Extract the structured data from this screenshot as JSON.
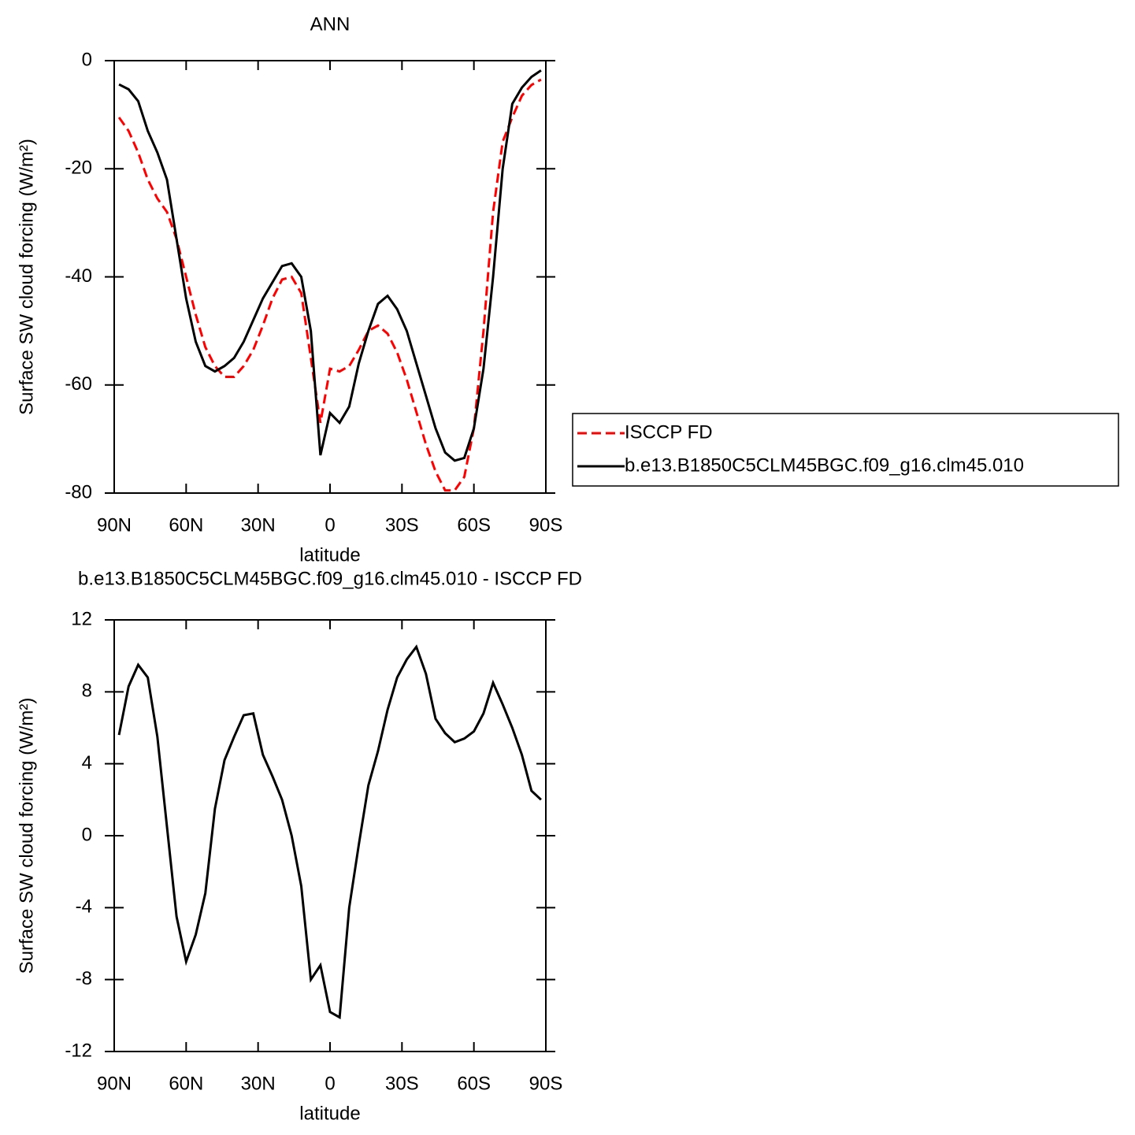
{
  "chart_data": [
    {
      "type": "line",
      "title": "ANN",
      "xlabel": "latitude",
      "ylabel": "Surface SW cloud forcing (W/m²)",
      "x": [
        88,
        84,
        80,
        76,
        72,
        68,
        64,
        60,
        56,
        52,
        48,
        44,
        40,
        36,
        32,
        28,
        24,
        20,
        16,
        12,
        8,
        4,
        0,
        -4,
        -8,
        -12,
        -16,
        -20,
        -24,
        -28,
        -32,
        -36,
        -40,
        -44,
        -48,
        -52,
        -56,
        -60,
        -64,
        -68,
        -72,
        -76,
        -80,
        -84,
        -88
      ],
      "xlim": [
        90,
        -90
      ],
      "xticks": [
        {
          "value": 90,
          "label": "90N"
        },
        {
          "value": 60,
          "label": "60N"
        },
        {
          "value": 30,
          "label": "30N"
        },
        0,
        {
          "value": -30,
          "label": "30S"
        },
        {
          "value": -60,
          "label": "60S"
        },
        {
          "value": -90,
          "label": "90S"
        }
      ],
      "ylim": [
        -80,
        0
      ],
      "yticks": [
        -80,
        -60,
        -40,
        -20,
        0
      ],
      "legend": "right",
      "series": [
        {
          "name": "ISCCP FD",
          "color": "#ff0000",
          "linestyle": "dashed",
          "values": [
            -10.5,
            -13,
            -17,
            -22,
            -25.5,
            -28,
            -33,
            -40,
            -47,
            -53,
            -56.5,
            -58.5,
            -58.5,
            -56.5,
            -53.5,
            -49,
            -44,
            -40.5,
            -40,
            -43,
            -55,
            -67,
            -57,
            -57.5,
            -56.5,
            -53.5,
            -50,
            -49,
            -50.5,
            -54,
            -59,
            -65,
            -71,
            -76,
            -79.5,
            -79.5,
            -77,
            -68,
            -50,
            -28,
            -15,
            -10.5,
            -6.5,
            -4.5,
            -3.5
          ]
        },
        {
          "name": "b.e13.B1850C5CLM45BGC.f09_g16.clm45.010",
          "color": "#000000",
          "linestyle": "solid",
          "values": [
            -4.4,
            -5.3,
            -7.5,
            -13,
            -17,
            -22,
            -33,
            -44,
            -52,
            -56.5,
            -57.5,
            -56.5,
            -55,
            -52,
            -48,
            -44,
            -41,
            -38,
            -37.5,
            -40,
            -50,
            -73,
            -65.2,
            -67,
            -64,
            -56,
            -50,
            -45,
            -43.5,
            -46,
            -50,
            -56,
            -62,
            -68,
            -72.5,
            -74,
            -73.5,
            -68,
            -57,
            -40,
            -20,
            -8,
            -5,
            -3,
            -1.8
          ]
        }
      ]
    },
    {
      "type": "line",
      "title": "b.e13.B1850C5CLM45BGC.f09_g16.clm45.010 - ISCCP FD",
      "xlabel": "latitude",
      "ylabel": "Surface SW cloud forcing (W/m²)",
      "x": [
        88,
        84,
        80,
        76,
        72,
        68,
        64,
        60,
        56,
        52,
        48,
        44,
        40,
        36,
        32,
        28,
        24,
        20,
        16,
        12,
        8,
        4,
        0,
        -4,
        -8,
        -12,
        -16,
        -20,
        -24,
        -28,
        -32,
        -36,
        -40,
        -44,
        -48,
        -52,
        -56,
        -60,
        -64,
        -68,
        -72,
        -76,
        -80,
        -84,
        -88
      ],
      "xlim": [
        90,
        -90
      ],
      "xticks": [
        {
          "value": 90,
          "label": "90N"
        },
        {
          "value": 60,
          "label": "60N"
        },
        {
          "value": 30,
          "label": "30N"
        },
        0,
        {
          "value": -30,
          "label": "30S"
        },
        {
          "value": -60,
          "label": "60S"
        },
        {
          "value": -90,
          "label": "90S"
        }
      ],
      "ylim": [
        -12,
        12
      ],
      "yticks": [
        -12,
        -8,
        -4,
        0,
        4,
        8,
        12
      ],
      "series": [
        {
          "color": "#000000",
          "linestyle": "solid",
          "values": [
            5.6,
            8.3,
            9.5,
            8.8,
            5.5,
            0.5,
            -4.5,
            -7.0,
            -5.5,
            -3.2,
            1.5,
            4.2,
            5.5,
            6.7,
            6.8,
            4.5,
            3.3,
            2.0,
            0,
            -2.8,
            -8,
            -7.2,
            -9.8,
            -10.1,
            -4,
            -0.5,
            2.8,
            4.7,
            7,
            8.8,
            9.8,
            10.5,
            9,
            6.5,
            5.7,
            5.2,
            5.4,
            5.8,
            6.8,
            8.5,
            7.3,
            6,
            4.5,
            2.5,
            2.0
          ]
        }
      ]
    }
  ]
}
